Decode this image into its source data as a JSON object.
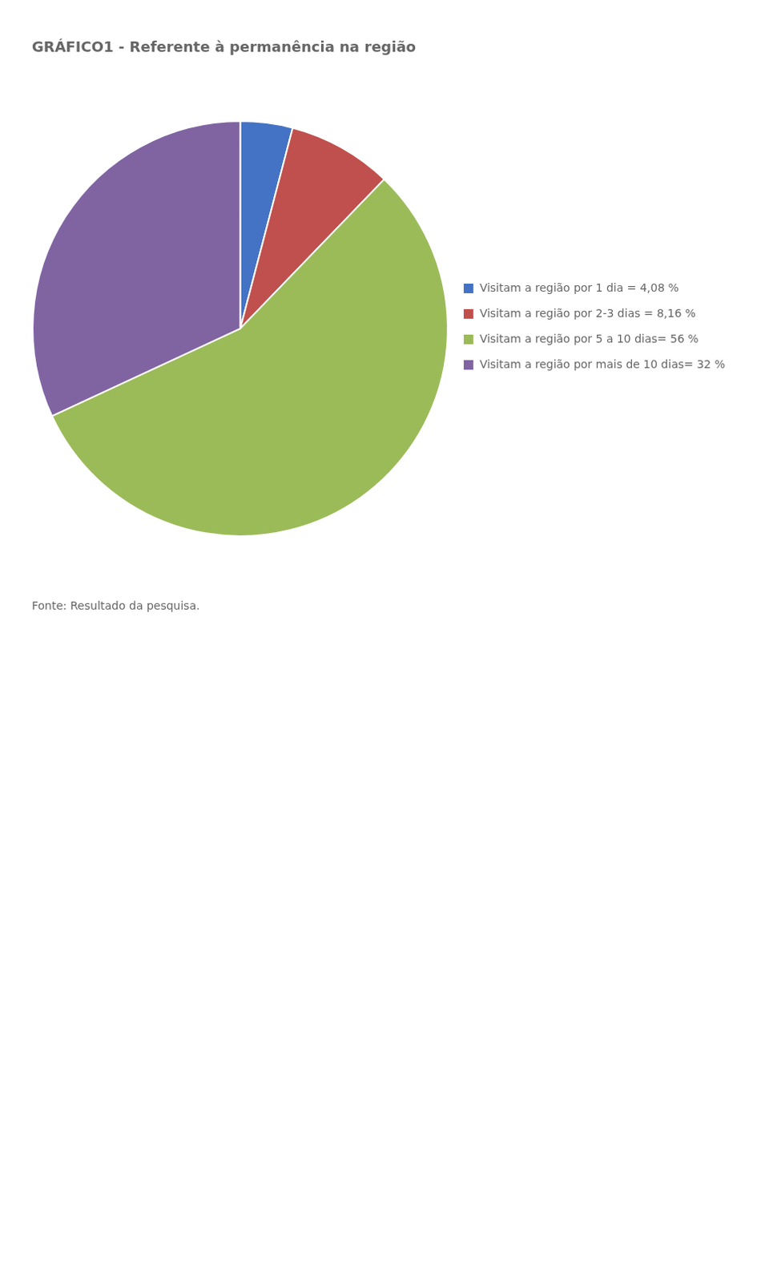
{
  "chart_data": {
    "type": "pie",
    "title": "GRÁFICO1 - Referente à permanência na região",
    "categories": [
      "Visitam a região por 1 dia = 4,08 %",
      "Visitam a região por 2-3 dias = 8,16 %",
      "Visitam a região por 5 a 10 dias= 56 %",
      "Visitam a região por mais de 10 dias= 32 %"
    ],
    "values": [
      4.08,
      8.16,
      56.0,
      32.0
    ],
    "colors": [
      "#4472C4",
      "#C0504D",
      "#9BBB59",
      "#8064A2"
    ],
    "legend": "right",
    "annotations": [
      "Fonte: Resultado da pesquisa."
    ]
  }
}
